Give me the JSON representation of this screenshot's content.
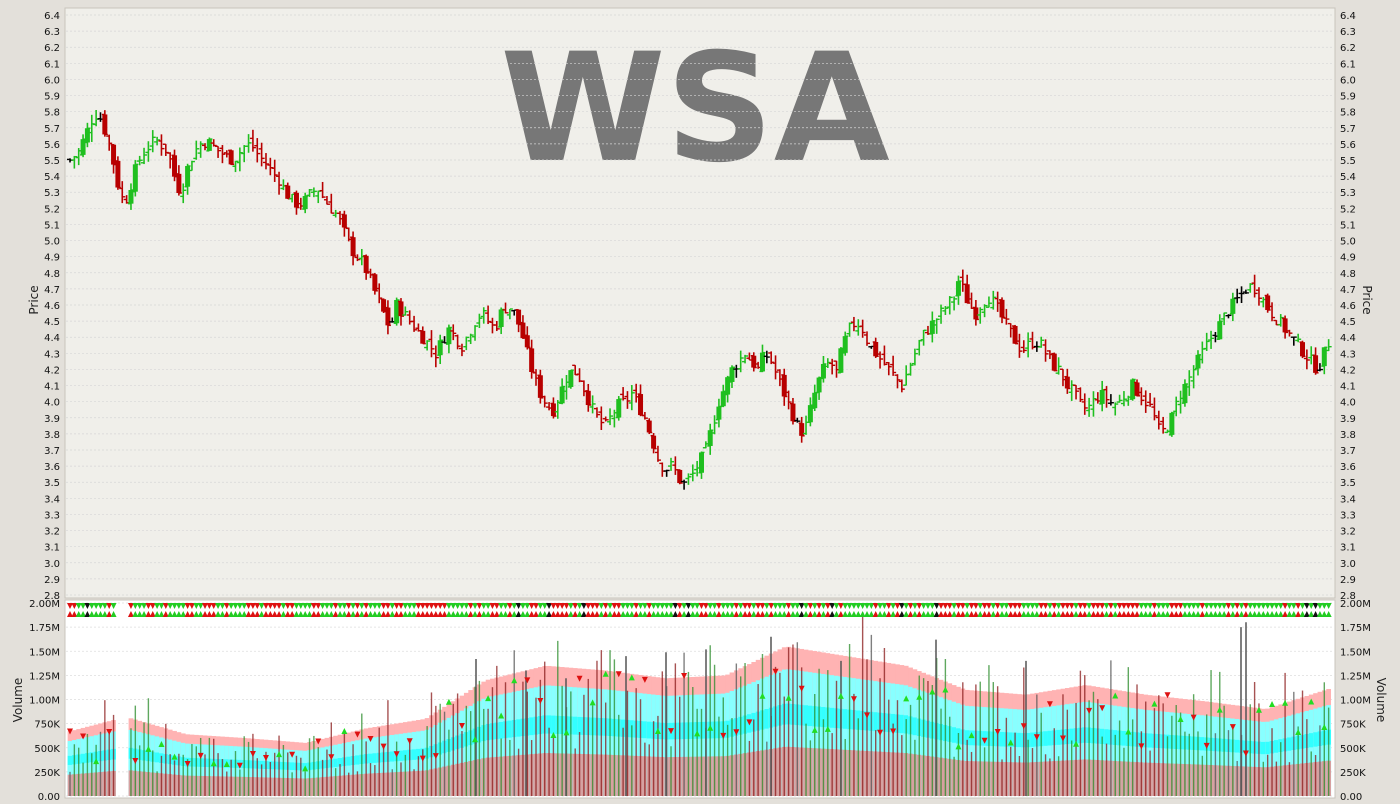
{
  "chart_data": [
    {
      "type": "ohlc",
      "ticker": "WSA",
      "ylabel": "Price",
      "ylim": [
        2.8,
        6.4
      ],
      "yticks": [
        "2.8",
        "2.9",
        "3.0",
        "3.1",
        "3.2",
        "3.3",
        "3.4",
        "3.5",
        "3.6",
        "3.7",
        "3.8",
        "3.9",
        "4.0",
        "4.1",
        "4.2",
        "4.3",
        "4.4",
        "4.5",
        "4.6",
        "4.7",
        "4.8",
        "4.9",
        "5.0",
        "5.1",
        "5.2",
        "5.3",
        "5.4",
        "5.5",
        "5.6",
        "5.7",
        "5.8",
        "5.9",
        "6.0",
        "6.1",
        "6.2",
        "6.3",
        "6.4"
      ],
      "grid": true,
      "close_series_approx": [
        [
          0,
          5.5
        ],
        [
          8,
          5.55
        ],
        [
          14,
          5.65
        ],
        [
          20,
          5.75
        ],
        [
          26,
          5.8
        ],
        [
          30,
          5.72
        ],
        [
          34,
          5.65
        ],
        [
          38,
          5.55
        ],
        [
          44,
          5.35
        ],
        [
          50,
          5.22
        ],
        [
          56,
          5.35
        ],
        [
          62,
          5.48
        ],
        [
          68,
          5.55
        ],
        [
          74,
          5.6
        ],
        [
          80,
          5.62
        ],
        [
          86,
          5.58
        ],
        [
          90,
          5.55
        ],
        [
          94,
          5.45
        ],
        [
          98,
          5.35
        ],
        [
          102,
          5.3
        ],
        [
          108,
          5.45
        ],
        [
          114,
          5.55
        ],
        [
          120,
          5.6
        ],
        [
          126,
          5.62
        ],
        [
          132,
          5.58
        ],
        [
          138,
          5.55
        ],
        [
          144,
          5.52
        ],
        [
          150,
          5.5
        ],
        [
          156,
          5.55
        ],
        [
          162,
          5.6
        ],
        [
          168,
          5.58
        ],
        [
          174,
          5.52
        ],
        [
          180,
          5.48
        ],
        [
          186,
          5.42
        ],
        [
          192,
          5.38
        ],
        [
          198,
          5.3
        ],
        [
          204,
          5.25
        ],
        [
          210,
          5.22
        ],
        [
          216,
          5.25
        ],
        [
          222,
          5.3
        ],
        [
          228,
          5.32
        ],
        [
          234,
          5.25
        ],
        [
          240,
          5.2
        ],
        [
          246,
          5.15
        ],
        [
          252,
          5.05
        ],
        [
          258,
          4.95
        ],
        [
          264,
          4.9
        ],
        [
          270,
          4.85
        ],
        [
          276,
          4.75
        ],
        [
          282,
          4.65
        ],
        [
          288,
          4.55
        ],
        [
          294,
          4.45
        ],
        [
          300,
          4.6
        ],
        [
          306,
          4.55
        ],
        [
          312,
          4.5
        ],
        [
          318,
          4.45
        ],
        [
          324,
          4.4
        ],
        [
          330,
          4.35
        ],
        [
          336,
          4.3
        ],
        [
          342,
          4.38
        ],
        [
          348,
          4.45
        ],
        [
          354,
          4.4
        ],
        [
          360,
          4.35
        ],
        [
          366,
          4.42
        ],
        [
          372,
          4.5
        ],
        [
          378,
          4.55
        ],
        [
          384,
          4.5
        ],
        [
          390,
          4.45
        ],
        [
          396,
          4.55
        ],
        [
          402,
          4.6
        ],
        [
          408,
          4.55
        ],
        [
          414,
          4.45
        ],
        [
          420,
          4.3
        ],
        [
          426,
          4.15
        ],
        [
          432,
          4.05
        ],
        [
          438,
          3.98
        ],
        [
          444,
          3.95
        ],
        [
          450,
          4.05
        ],
        [
          456,
          4.15
        ],
        [
          462,
          4.2
        ],
        [
          468,
          4.15
        ],
        [
          474,
          4.05
        ],
        [
          480,
          3.95
        ],
        [
          486,
          3.88
        ],
        [
          492,
          3.85
        ],
        [
          498,
          3.92
        ],
        [
          504,
          3.98
        ],
        [
          510,
          4.0
        ],
        [
          516,
          4.05
        ],
        [
          522,
          3.98
        ],
        [
          528,
          3.9
        ],
        [
          534,
          3.78
        ],
        [
          540,
          3.65
        ],
        [
          546,
          3.58
        ],
        [
          552,
          3.6
        ],
        [
          558,
          3.55
        ],
        [
          562,
          3.48
        ],
        [
          566,
          3.5
        ],
        [
          572,
          3.55
        ],
        [
          578,
          3.62
        ],
        [
          584,
          3.7
        ],
        [
          590,
          3.85
        ],
        [
          596,
          4.0
        ],
        [
          602,
          4.1
        ],
        [
          608,
          4.2
        ],
        [
          614,
          4.25
        ],
        [
          620,
          4.3
        ],
        [
          626,
          4.25
        ],
        [
          632,
          4.2
        ],
        [
          638,
          4.3
        ],
        [
          644,
          4.25
        ],
        [
          650,
          4.15
        ],
        [
          656,
          4.05
        ],
        [
          662,
          3.95
        ],
        [
          668,
          3.85
        ],
        [
          674,
          3.8
        ],
        [
          680,
          3.95
        ],
        [
          686,
          4.1
        ],
        [
          692,
          4.2
        ],
        [
          698,
          4.25
        ],
        [
          704,
          4.18
        ],
        [
          710,
          4.35
        ],
        [
          716,
          4.45
        ],
        [
          722,
          4.5
        ],
        [
          728,
          4.45
        ],
        [
          734,
          4.35
        ],
        [
          740,
          4.3
        ],
        [
          746,
          4.25
        ],
        [
          752,
          4.2
        ],
        [
          758,
          4.15
        ],
        [
          764,
          4.1
        ],
        [
          770,
          4.2
        ],
        [
          776,
          4.3
        ],
        [
          782,
          4.4
        ],
        [
          788,
          4.45
        ],
        [
          794,
          4.5
        ],
        [
          800,
          4.55
        ],
        [
          806,
          4.6
        ],
        [
          812,
          4.65
        ],
        [
          816,
          4.75
        ],
        [
          820,
          4.7
        ],
        [
          826,
          4.6
        ],
        [
          832,
          4.55
        ],
        [
          838,
          4.62
        ],
        [
          844,
          4.65
        ],
        [
          850,
          4.6
        ],
        [
          856,
          4.52
        ],
        [
          862,
          4.45
        ],
        [
          868,
          4.38
        ],
        [
          874,
          4.32
        ],
        [
          880,
          4.35
        ],
        [
          886,
          4.38
        ],
        [
          892,
          4.35
        ],
        [
          898,
          4.28
        ],
        [
          904,
          4.22
        ],
        [
          910,
          4.18
        ],
        [
          916,
          4.1
        ],
        [
          922,
          4.05
        ],
        [
          928,
          3.98
        ],
        [
          934,
          3.95
        ],
        [
          940,
          4.0
        ],
        [
          946,
          4.05
        ],
        [
          952,
          4.02
        ],
        [
          958,
          3.98
        ],
        [
          964,
          4.0
        ],
        [
          970,
          4.05
        ],
        [
          976,
          4.1
        ],
        [
          982,
          4.05
        ],
        [
          988,
          4.0
        ],
        [
          994,
          3.95
        ],
        [
          998,
          3.85
        ],
        [
          1002,
          3.8
        ],
        [
          1008,
          3.85
        ],
        [
          1012,
          3.9
        ],
        [
          1016,
          3.98
        ],
        [
          1020,
          4.05
        ],
        [
          1026,
          4.12
        ],
        [
          1032,
          4.2
        ],
        [
          1038,
          4.28
        ],
        [
          1044,
          4.35
        ],
        [
          1050,
          4.42
        ],
        [
          1056,
          4.48
        ],
        [
          1062,
          4.55
        ],
        [
          1068,
          4.6
        ],
        [
          1074,
          4.65
        ],
        [
          1080,
          4.7
        ],
        [
          1086,
          4.72
        ],
        [
          1092,
          4.68
        ],
        [
          1098,
          4.6
        ],
        [
          1104,
          4.55
        ],
        [
          1110,
          4.5
        ],
        [
          1116,
          4.45
        ],
        [
          1122,
          4.4
        ],
        [
          1128,
          4.35
        ],
        [
          1134,
          4.3
        ],
        [
          1140,
          4.25
        ],
        [
          1146,
          4.2
        ],
        [
          1152,
          4.3
        ],
        [
          1158,
          4.4
        ]
      ]
    },
    {
      "type": "volume",
      "ylabel": "Volume",
      "ylim": [
        0,
        2000000
      ],
      "yticks": [
        "0.00",
        "250K",
        "500K",
        "750K",
        "1.00M",
        "1.25M",
        "1.50M",
        "1.75M",
        "2.00M"
      ],
      "band_top_approx": [
        [
          0,
          0.66
        ],
        [
          60,
          0.82
        ],
        [
          120,
          0.64
        ],
        [
          180,
          0.6
        ],
        [
          240,
          0.55
        ],
        [
          300,
          0.7
        ],
        [
          360,
          0.8
        ],
        [
          420,
          1.2
        ],
        [
          480,
          1.35
        ],
        [
          540,
          1.3
        ],
        [
          600,
          1.22
        ],
        [
          660,
          1.25
        ],
        [
          720,
          1.55
        ],
        [
          780,
          1.45
        ],
        [
          840,
          1.35
        ],
        [
          900,
          1.1
        ],
        [
          960,
          1.05
        ],
        [
          1020,
          1.15
        ],
        [
          1080,
          1.05
        ],
        [
          1140,
          0.98
        ],
        [
          1200,
          0.9
        ],
        [
          1260,
          1.1
        ],
        [
          1320,
          1.3
        ],
        [
          1380,
          1.35
        ]
      ],
      "spikes_approx": [
        [
          410,
          1.42
        ],
        [
          460,
          1.3
        ],
        [
          500,
          1.22
        ],
        [
          560,
          1.45
        ],
        [
          600,
          1.49
        ],
        [
          640,
          1.52
        ],
        [
          705,
          1.65
        ],
        [
          775,
          1.4
        ],
        [
          870,
          1.62
        ],
        [
          960,
          1.4
        ],
        [
          1175,
          1.75
        ],
        [
          1180,
          1.8
        ]
      ]
    }
  ],
  "colors": {
    "up": "#1fbf1f",
    "down": "#b80000",
    "neutral": "#000000",
    "band_pink": "#ffb3b3",
    "band_cyan": "#88ffff",
    "band_teal": "#33ffff",
    "band_rose": "#d7a0a0",
    "watermark": "#777777",
    "grid": "#d6d6d6"
  }
}
